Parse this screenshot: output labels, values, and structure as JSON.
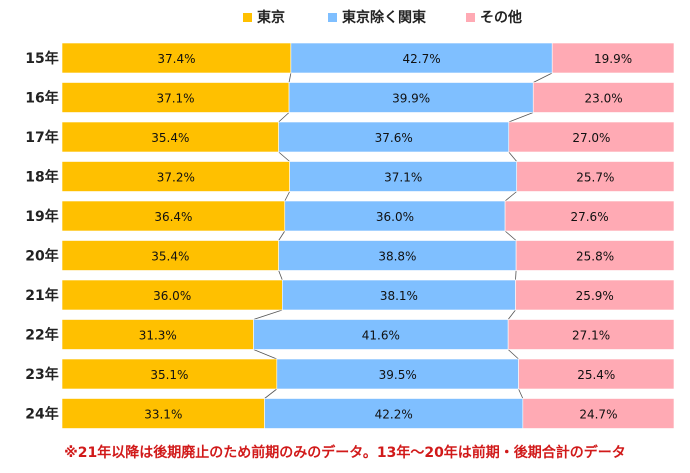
{
  "chart_data": {
    "type": "bar",
    "orientation": "horizontal",
    "stacked": "100%",
    "categories": [
      "15年",
      "16年",
      "17年",
      "18年",
      "19年",
      "20年",
      "21年",
      "22年",
      "23年",
      "24年"
    ],
    "series": [
      {
        "name": "東京",
        "color": "#ffc000",
        "values": [
          37.4,
          37.1,
          35.4,
          37.2,
          36.4,
          35.4,
          36.0,
          31.3,
          35.1,
          33.1
        ],
        "labels": [
          "37.4%",
          "37.1%",
          "35.4%",
          "37.2%",
          "36.4%",
          "35.4%",
          "36.0%",
          "31.3%",
          "35.1%",
          "33.1%"
        ]
      },
      {
        "name": "東京除く関東",
        "color": "#7fbfff",
        "values": [
          42.7,
          39.9,
          37.6,
          37.1,
          36.0,
          38.8,
          38.1,
          41.6,
          39.5,
          42.2
        ],
        "labels": [
          "42.7%",
          "39.9%",
          "37.6%",
          "37.1%",
          "36.0%",
          "38.8%",
          "38.1%",
          "41.6%",
          "39.5%",
          "42.2%"
        ]
      },
      {
        "name": "その他",
        "color": "#ffaab4",
        "values": [
          19.9,
          23.0,
          27.0,
          25.7,
          27.6,
          25.8,
          25.9,
          27.1,
          25.4,
          24.7
        ],
        "labels": [
          "19.9%",
          "23.0%",
          "27.0%",
          "25.7%",
          "27.6%",
          "25.8%",
          "25.9%",
          "27.1%",
          "25.4%",
          "24.7%"
        ]
      }
    ],
    "xlim": [
      0,
      100
    ],
    "grid": false,
    "series_lines": true,
    "legend_position": "top"
  },
  "note": "※21年以降は後期廃止のため前期のみのデータ。13年～20年は前期・後期合計のデータ"
}
